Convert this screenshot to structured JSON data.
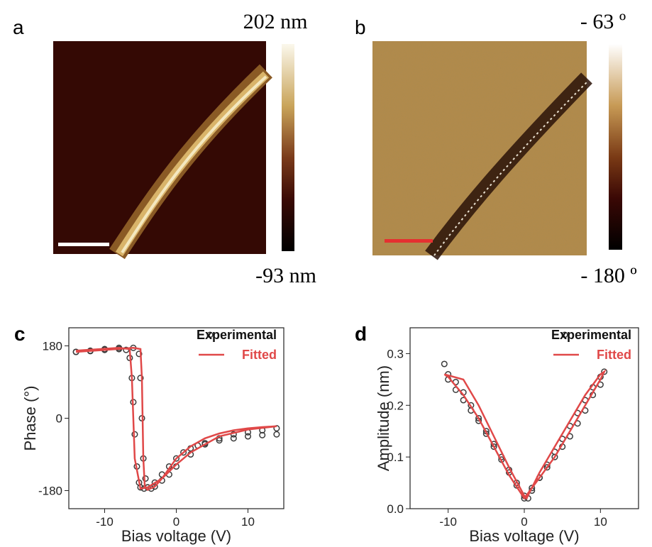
{
  "panels": [
    {
      "label": "a",
      "colorbar_max": "202 nm",
      "colorbar_min": "-93 nm"
    },
    {
      "label": "b",
      "colorbar_max": "- 63 º",
      "colorbar_min": "- 180 º"
    }
  ],
  "chart_data": [
    {
      "type": "scatter-line",
      "panel_label": "c",
      "xlabel": "Bias voltage (V)",
      "ylabel": "Phase (°)",
      "xlim": [
        -15,
        15
      ],
      "ylim": [
        -225,
        225
      ],
      "xticks": [
        -10,
        0,
        10
      ],
      "yticks": [
        -180,
        0,
        180
      ],
      "legend": "upper right",
      "series": [
        {
          "name": "Experimental",
          "color": "#3a3a3a",
          "marker": "circle",
          "x": [
            -14,
            -12,
            -10,
            -8,
            -7,
            -6.5,
            -6.2,
            -6,
            -5.8,
            -5.5,
            -5.2,
            -5,
            -4.5,
            -4,
            -3,
            -2,
            -1,
            0,
            1,
            2,
            3,
            4,
            6,
            8,
            10,
            12,
            14,
            14,
            12,
            10,
            8,
            6,
            4,
            2,
            0,
            -1,
            -2,
            -3,
            -3.5,
            -4,
            -4.3,
            -4.6,
            -4.8,
            -5,
            -5.2,
            -6,
            -8,
            -10,
            -12,
            -14
          ],
          "values": [
            165,
            167,
            170,
            172,
            170,
            150,
            100,
            40,
            -40,
            -120,
            -160,
            -172,
            -175,
            -172,
            -160,
            -140,
            -120,
            -100,
            -85,
            -75,
            -68,
            -62,
            -55,
            -50,
            -45,
            -42,
            -40,
            -25,
            -30,
            -35,
            -40,
            -50,
            -65,
            -90,
            -120,
            -140,
            -155,
            -170,
            -175,
            -172,
            -150,
            -100,
            0,
            100,
            160,
            175,
            175,
            172,
            168,
            165
          ]
        },
        {
          "name": "Fitted",
          "color": "#e04848",
          "marker": "line",
          "x": [
            -14,
            -10,
            -6,
            -5,
            -4.8,
            -4.6,
            -4.4,
            -4,
            -3,
            -2,
            -1,
            0,
            2,
            4,
            6,
            8,
            10,
            12,
            14,
            null,
            14,
            10,
            6,
            2,
            0,
            -2,
            -4,
            -5,
            -5.8,
            -6,
            -6.2,
            -6.5,
            -8,
            -14
          ],
          "values": [
            165,
            170,
            175,
            172,
            100,
            -100,
            -170,
            -178,
            -170,
            -150,
            -125,
            -100,
            -70,
            -50,
            -38,
            -30,
            -25,
            -22,
            -20,
            null,
            -20,
            -28,
            -45,
            -85,
            -115,
            -150,
            -172,
            -175,
            -100,
            0,
            100,
            172,
            175,
            168
          ]
        }
      ]
    },
    {
      "type": "scatter-line",
      "panel_label": "d",
      "xlabel": "Bias voltage (V)",
      "ylabel": "Amplitude (nm)",
      "xlim": [
        -15,
        15
      ],
      "ylim": [
        0,
        0.35
      ],
      "xticks": [
        -10,
        0,
        10
      ],
      "yticks": [
        {
          "value": 0,
          "label": "0.0"
        },
        0.1,
        0.2,
        0.3
      ],
      "legend": "upper right",
      "series": [
        {
          "name": "Experimental",
          "color": "#3a3a3a",
          "marker": "circle",
          "x": [
            -10.5,
            -10,
            -9,
            -8,
            -7,
            -6,
            -5,
            -4,
            -3,
            -2,
            -1,
            0,
            0.5,
            1,
            2,
            3,
            4,
            5,
            6,
            7,
            8,
            9,
            10,
            10.5,
            10,
            9,
            8,
            7,
            6,
            5,
            4,
            3,
            2,
            1,
            0,
            -1,
            -2,
            -3,
            -4,
            -5,
            -6,
            -7,
            -8,
            -9,
            -10
          ],
          "values": [
            0.28,
            0.26,
            0.245,
            0.225,
            0.2,
            0.175,
            0.15,
            0.125,
            0.1,
            0.075,
            0.05,
            0.025,
            0.02,
            0.035,
            0.06,
            0.085,
            0.11,
            0.135,
            0.16,
            0.185,
            0.21,
            0.235,
            0.255,
            0.265,
            0.24,
            0.22,
            0.19,
            0.165,
            0.14,
            0.12,
            0.1,
            0.08,
            0.06,
            0.04,
            0.02,
            0.045,
            0.07,
            0.095,
            0.12,
            0.145,
            0.17,
            0.19,
            0.21,
            0.23,
            0.25
          ]
        },
        {
          "name": "Fitted",
          "color": "#e04848",
          "marker": "line",
          "x": [
            -10.5,
            -8,
            -6,
            -4,
            -2,
            0,
            0.3,
            2,
            4,
            6,
            8,
            10,
            10.5,
            10,
            8,
            6,
            4,
            2,
            0,
            -2,
            -4,
            -6,
            -8,
            -10,
            -10.5
          ],
          "values": [
            0.26,
            0.25,
            0.2,
            0.14,
            0.08,
            0.025,
            0.02,
            0.07,
            0.12,
            0.17,
            0.22,
            0.26,
            0.265,
            0.25,
            0.2,
            0.15,
            0.1,
            0.06,
            0.02,
            0.065,
            0.12,
            0.175,
            0.22,
            0.255,
            0.26
          ]
        }
      ]
    }
  ]
}
